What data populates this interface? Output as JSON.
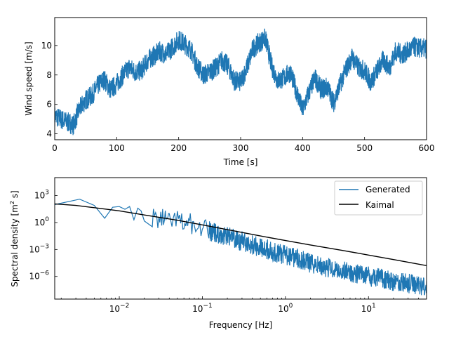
{
  "colors": {
    "generated": "#1f77b4",
    "kaimal": "#000000"
  },
  "chart_data": [
    {
      "type": "line",
      "name": "wind-speed-timeseries",
      "xlabel": "Time [s]",
      "ylabel": "Wind speed [m/s]",
      "xlim": [
        0,
        600
      ],
      "ylim": [
        3.6,
        11.9
      ],
      "xticks": [
        0,
        100,
        200,
        300,
        400,
        500,
        600
      ],
      "xtick_labels": [
        "0",
        "100",
        "200",
        "300",
        "400",
        "500",
        "600"
      ],
      "yticks": [
        4,
        6,
        8,
        10
      ],
      "ytick_labels": [
        "4",
        "6",
        "8",
        "10"
      ],
      "series": [
        {
          "name": "Wind speed",
          "color": "#1f77b4",
          "x": [
            0,
            10,
            20,
            30,
            40,
            50,
            60,
            70,
            80,
            90,
            100,
            110,
            120,
            130,
            140,
            150,
            160,
            170,
            180,
            190,
            200,
            210,
            220,
            230,
            240,
            250,
            260,
            270,
            280,
            290,
            300,
            310,
            320,
            330,
            340,
            350,
            360,
            370,
            380,
            390,
            400,
            410,
            420,
            430,
            440,
            450,
            460,
            470,
            480,
            490,
            500,
            510,
            520,
            530,
            540,
            550,
            560,
            570,
            580,
            590,
            600
          ],
          "y": [
            5.2,
            5.0,
            4.8,
            4.6,
            5.7,
            6.3,
            6.6,
            7.3,
            7.7,
            7.0,
            7.4,
            8.0,
            8.5,
            8.2,
            8.3,
            9.0,
            9.3,
            9.6,
            9.4,
            9.9,
            10.4,
            10.1,
            9.7,
            8.6,
            8.0,
            8.2,
            8.5,
            9.0,
            8.6,
            7.6,
            7.5,
            8.5,
            9.8,
            10.2,
            10.5,
            8.6,
            7.6,
            7.8,
            8.2,
            6.9,
            5.6,
            6.8,
            7.8,
            7.0,
            7.2,
            6.1,
            7.3,
            8.4,
            9.2,
            8.5,
            8.3,
            7.5,
            8.3,
            9.0,
            8.5,
            9.6,
            9.4,
            9.6,
            9.9,
            9.8,
            9.8
          ]
        }
      ]
    },
    {
      "type": "line",
      "name": "spectral-density",
      "xscale": "log",
      "yscale": "log",
      "xlabel": "Frequency [Hz]",
      "ylabel": "Spectral density [m² s]",
      "ylabel_base": "Spectral density [m",
      "ylabel_sup": "2",
      "ylabel_tail": " s]",
      "xlim": [
        0.00167,
        50
      ],
      "ylim": [
        3e-09,
        100000.0
      ],
      "xticks": [
        0.01,
        0.1,
        1,
        10
      ],
      "xtick_labels": [
        [
          "10",
          "−2"
        ],
        [
          "10",
          "−1"
        ],
        [
          "10",
          "0"
        ],
        [
          "10",
          "1"
        ]
      ],
      "yticks": [
        1e-06,
        0.001,
        1,
        1000.0
      ],
      "ytick_labels": [
        [
          "10",
          "−6"
        ],
        [
          "10",
          "−3"
        ],
        [
          "10",
          "0"
        ],
        [
          "10",
          "3"
        ]
      ],
      "legend": {
        "position": "top-right",
        "entries": [
          "Generated",
          "Kaimal"
        ]
      },
      "series": [
        {
          "name": "Generated",
          "color": "#1f77b4",
          "x": [
            0.00167,
            0.00333,
            0.005,
            0.00667,
            0.00833,
            0.01,
            0.0117,
            0.0133,
            0.015,
            0.0167,
            0.0183,
            0.02,
            0.025,
            0.03,
            0.035,
            0.04,
            0.05,
            0.06,
            0.07,
            0.08,
            0.1,
            0.12,
            0.15,
            0.2,
            0.3,
            0.5,
            0.7,
            1,
            1.5,
            2,
            3,
            5,
            7,
            10,
            15,
            20,
            30,
            50
          ],
          "y": [
            100,
            400,
            80,
            3,
            50,
            60,
            30,
            60,
            2,
            40,
            20,
            1.5,
            15,
            6,
            12,
            3,
            8,
            2,
            4,
            1,
            0.8,
            0.4,
            0.2,
            0.1,
            0.03,
            0.006,
            0.002,
            0.0008,
            0.0003,
            0.0001,
            4e-05,
            1.5e-05,
            8e-06,
            4e-06,
            2e-06,
            1e-06,
            6e-07,
            3e-07
          ]
        },
        {
          "name": "Kaimal",
          "color": "#000000",
          "x": [
            0.00167,
            0.003,
            0.005,
            0.01,
            0.02,
            0.05,
            0.1,
            0.2,
            0.5,
            1,
            2,
            5,
            10,
            20,
            50
          ],
          "y": [
            120,
            80,
            45,
            20,
            7,
            1.8,
            0.55,
            0.16,
            0.032,
            0.01,
            0.0032,
            0.00075,
            0.00024,
            7.5e-05,
            1.6e-05
          ]
        }
      ]
    }
  ]
}
